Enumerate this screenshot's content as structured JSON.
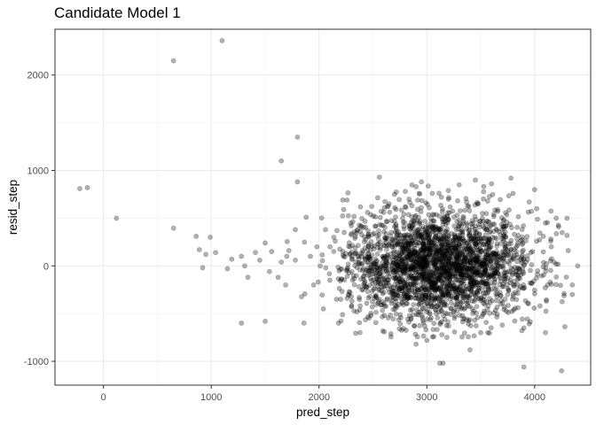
{
  "chart_data": {
    "type": "scatter",
    "title": "Candidate Model 1",
    "xlabel": "pred_step",
    "ylabel": "resid_step",
    "xlim": [
      -450,
      4520
    ],
    "ylim": [
      -1250,
      2480
    ],
    "x_ticks": [
      0,
      1000,
      2000,
      3000,
      4000
    ],
    "x_tick_labels": [
      "0",
      "1000",
      "2000",
      "3000",
      "4000"
    ],
    "y_ticks": [
      -1000,
      0,
      1000,
      2000
    ],
    "y_tick_labels": [
      "-1000",
      "0",
      "1000",
      "2000"
    ],
    "grid": true,
    "theme": "bw",
    "point_color": "#000000",
    "point_opacity": 0.3,
    "cluster_center": [
      3100,
      0
    ],
    "cluster_sd": [
      420,
      280
    ],
    "cluster_count": 2600,
    "notable_points": [
      [
        -220,
        810
      ],
      [
        -150,
        820
      ],
      [
        120,
        500
      ],
      [
        650,
        2150
      ],
      [
        650,
        395
      ],
      [
        1100,
        2360
      ],
      [
        1650,
        1100
      ],
      [
        1800,
        1350
      ],
      [
        1800,
        880
      ],
      [
        860,
        310
      ],
      [
        890,
        170
      ],
      [
        920,
        -20
      ],
      [
        950,
        120
      ],
      [
        990,
        300
      ],
      [
        1040,
        140
      ],
      [
        1150,
        -30
      ],
      [
        1190,
        70
      ],
      [
        1280,
        -600
      ],
      [
        1280,
        100
      ],
      [
        1310,
        0
      ],
      [
        1340,
        -120
      ],
      [
        1410,
        140
      ],
      [
        1450,
        60
      ],
      [
        1500,
        240
      ],
      [
        1500,
        -580
      ],
      [
        1540,
        -60
      ],
      [
        1560,
        150
      ],
      [
        1620,
        -120
      ],
      [
        1650,
        40
      ],
      [
        1690,
        -200
      ],
      [
        1700,
        100
      ],
      [
        1720,
        160
      ],
      [
        1780,
        60
      ],
      [
        1780,
        380
      ],
      [
        1860,
        -600
      ],
      [
        1880,
        510
      ],
      [
        1920,
        100
      ],
      [
        1950,
        -200
      ],
      [
        1980,
        200
      ],
      [
        2010,
        0
      ],
      [
        2040,
        -450
      ],
      [
        2060,
        380
      ],
      [
        2100,
        -150
      ],
      [
        2150,
        260
      ],
      [
        2200,
        -350
      ],
      [
        2300,
        420
      ],
      [
        2380,
        -700
      ],
      [
        2450,
        560
      ],
      [
        2560,
        930
      ],
      [
        2600,
        560
      ],
      [
        2650,
        650
      ],
      [
        2700,
        750
      ],
      [
        2800,
        780
      ],
      [
        2800,
        620
      ],
      [
        2900,
        -820
      ],
      [
        2900,
        830
      ],
      [
        2950,
        880
      ],
      [
        3000,
        -780
      ],
      [
        3050,
        760
      ],
      [
        3120,
        -1020
      ],
      [
        3150,
        -1020
      ],
      [
        3200,
        790
      ],
      [
        3300,
        850
      ],
      [
        3400,
        -880
      ],
      [
        3450,
        900
      ],
      [
        3500,
        -700
      ],
      [
        3600,
        860
      ],
      [
        3700,
        -620
      ],
      [
        3780,
        920
      ],
      [
        3800,
        760
      ],
      [
        3900,
        -1060
      ],
      [
        3950,
        670
      ],
      [
        4000,
        800
      ],
      [
        4020,
        600
      ],
      [
        4100,
        450
      ],
      [
        4100,
        -700
      ],
      [
        4150,
        260
      ],
      [
        4200,
        500
      ],
      [
        4250,
        -1100
      ],
      [
        4300,
        500
      ],
      [
        4300,
        320
      ],
      [
        4350,
        -200
      ],
      [
        4400,
        0
      ],
      [
        4350,
        -300
      ],
      [
        4120,
        -200
      ],
      [
        4050,
        -420
      ],
      [
        3980,
        150
      ],
      [
        3900,
        -650
      ],
      [
        3850,
        320
      ],
      [
        4180,
        40
      ]
    ]
  }
}
